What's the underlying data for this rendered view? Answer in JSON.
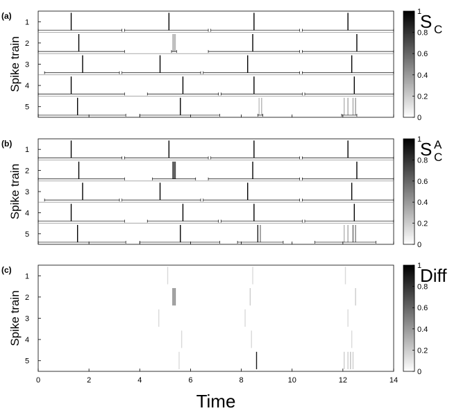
{
  "chart_data": {
    "type": "spike-raster",
    "x_axis": {
      "label": "Time",
      "range": [
        0,
        14
      ],
      "ticks": [
        0,
        2,
        4,
        6,
        8,
        10,
        12,
        14
      ]
    },
    "y_axis": {
      "label": "Spike train",
      "ticks": [
        1,
        2,
        3,
        4,
        5
      ]
    },
    "colorbar": {
      "range": [
        0,
        1
      ],
      "ticks": [
        0,
        0.2,
        0.4,
        0.6,
        0.8,
        1
      ],
      "tick_labels": [
        "0",
        "0.2",
        "0.4",
        "0.6",
        "0.8",
        "1"
      ]
    },
    "panels": [
      {
        "label": "(a)",
        "colorbar_title": "S",
        "colorbar_sub": "C",
        "colorbar_sup": "",
        "spikes": [
          [
            {
              "t": 1.3,
              "v": 1
            },
            {
              "t": 5.15,
              "v": 1
            },
            {
              "t": 8.5,
              "v": 1
            },
            {
              "t": 12.2,
              "v": 1
            }
          ],
          [
            {
              "t": 1.6,
              "v": 1
            },
            {
              "t": 5.3,
              "v": 0.3
            },
            {
              "t": 5.35,
              "v": 0.35
            },
            {
              "t": 5.4,
              "v": 0.3
            },
            {
              "t": 8.45,
              "v": 1
            },
            {
              "t": 12.55,
              "v": 1
            }
          ],
          [
            {
              "t": 1.75,
              "v": 1
            },
            {
              "t": 4.8,
              "v": 1
            },
            {
              "t": 8.25,
              "v": 1
            },
            {
              "t": 12.35,
              "v": 1
            }
          ],
          [
            {
              "t": 1.3,
              "v": 1
            },
            {
              "t": 5.7,
              "v": 1
            },
            {
              "t": 8.5,
              "v": 1
            },
            {
              "t": 12.45,
              "v": 1
            }
          ],
          [
            {
              "t": 1.55,
              "v": 1
            },
            {
              "t": 5.6,
              "v": 1
            },
            {
              "t": 8.7,
              "v": 0.25
            },
            {
              "t": 8.8,
              "v": 0.3
            },
            {
              "t": 12.05,
              "v": 0.3
            },
            {
              "t": 12.2,
              "v": 0.35
            },
            {
              "t": 12.4,
              "v": 0.35
            },
            {
              "t": 12.5,
              "v": 0.4
            }
          ]
        ],
        "bounds": [
          [
            {
              "a": 0,
              "b": 3.3
            },
            {
              "a": 3.4,
              "b": 6.7
            },
            {
              "a": 6.8,
              "b": 10.3
            },
            {
              "a": 10.4,
              "b": 14
            }
          ],
          [
            {
              "a": 0,
              "b": 3.4
            },
            {
              "a": 5.25,
              "b": 5.45
            },
            {
              "a": 6.7,
              "b": 10.3
            },
            {
              "a": 10.4,
              "b": 14
            }
          ],
          [
            {
              "a": 0.25,
              "b": 3.2
            },
            {
              "a": 3.3,
              "b": 6.4
            },
            {
              "a": 6.5,
              "b": 10.3
            },
            {
              "a": 10.4,
              "b": 14
            }
          ],
          [
            {
              "a": 0,
              "b": 3.4
            },
            {
              "a": 4.3,
              "b": 7.1
            },
            {
              "a": 7.2,
              "b": 10.4
            },
            {
              "a": 10.5,
              "b": 14
            }
          ],
          [
            {
              "a": 0,
              "b": 3.45
            },
            {
              "a": 4.0,
              "b": 7.15
            },
            {
              "a": 8.65,
              "b": 8.85
            },
            {
              "a": 11.95,
              "b": 12.55
            }
          ]
        ]
      },
      {
        "label": "(b)",
        "colorbar_title": "S",
        "colorbar_sub": "C",
        "colorbar_sup": "A",
        "spikes": [
          [
            {
              "t": 1.3,
              "v": 1
            },
            {
              "t": 5.15,
              "v": 1
            },
            {
              "t": 8.5,
              "v": 1
            },
            {
              "t": 12.2,
              "v": 1
            }
          ],
          [
            {
              "t": 1.6,
              "v": 1
            },
            {
              "t": 5.3,
              "v": 0.75
            },
            {
              "t": 5.35,
              "v": 0.85
            },
            {
              "t": 5.4,
              "v": 0.75
            },
            {
              "t": 8.45,
              "v": 1
            },
            {
              "t": 12.55,
              "v": 1
            }
          ],
          [
            {
              "t": 1.75,
              "v": 1
            },
            {
              "t": 4.8,
              "v": 1
            },
            {
              "t": 8.25,
              "v": 1
            },
            {
              "t": 12.35,
              "v": 1
            }
          ],
          [
            {
              "t": 1.3,
              "v": 1
            },
            {
              "t": 5.7,
              "v": 1
            },
            {
              "t": 8.5,
              "v": 1
            },
            {
              "t": 12.45,
              "v": 1
            }
          ],
          [
            {
              "t": 1.55,
              "v": 1
            },
            {
              "t": 5.6,
              "v": 1
            },
            {
              "t": 8.65,
              "v": 0.9
            },
            {
              "t": 8.75,
              "v": 0.5
            },
            {
              "t": 12.05,
              "v": 0.3
            },
            {
              "t": 12.2,
              "v": 0.35
            },
            {
              "t": 12.4,
              "v": 0.6
            },
            {
              "t": 12.5,
              "v": 0.5
            }
          ]
        ],
        "bounds": [
          [
            {
              "a": 0,
              "b": 3.3
            },
            {
              "a": 3.4,
              "b": 6.7
            },
            {
              "a": 6.8,
              "b": 10.3
            },
            {
              "a": 10.4,
              "b": 14
            }
          ],
          [
            {
              "a": 0,
              "b": 3.4
            },
            {
              "a": 4.5,
              "b": 6.2
            },
            {
              "a": 6.7,
              "b": 10.3
            },
            {
              "a": 10.4,
              "b": 14
            }
          ],
          [
            {
              "a": 0.25,
              "b": 3.2
            },
            {
              "a": 3.3,
              "b": 6.4
            },
            {
              "a": 6.5,
              "b": 10.3
            },
            {
              "a": 10.4,
              "b": 14
            }
          ],
          [
            {
              "a": 0,
              "b": 3.4
            },
            {
              "a": 4.3,
              "b": 7.1
            },
            {
              "a": 7.2,
              "b": 10.4
            },
            {
              "a": 10.5,
              "b": 14
            }
          ],
          [
            {
              "a": 0,
              "b": 3.45
            },
            {
              "a": 4.0,
              "b": 7.15
            },
            {
              "a": 7.85,
              "b": 9.65
            },
            {
              "a": 10.9,
              "b": 13.3
            }
          ]
        ]
      },
      {
        "label": "(c)",
        "colorbar_title": "Diff",
        "colorbar_sub": "",
        "colorbar_sup": "",
        "spikes": [
          [
            {
              "t": 5.1,
              "v": 0.15
            },
            {
              "t": 8.45,
              "v": 0.15
            },
            {
              "t": 12.1,
              "v": 0.15
            }
          ],
          [
            {
              "t": 5.3,
              "v": 0.45
            },
            {
              "t": 5.35,
              "v": 0.5
            },
            {
              "t": 5.4,
              "v": 0.45
            },
            {
              "t": 8.35,
              "v": 0.2
            },
            {
              "t": 12.5,
              "v": 0.2
            }
          ],
          [
            {
              "t": 4.75,
              "v": 0.15
            },
            {
              "t": 8.15,
              "v": 0.15
            },
            {
              "t": 12.2,
              "v": 0.15
            }
          ],
          [
            {
              "t": 5.65,
              "v": 0.15
            },
            {
              "t": 8.4,
              "v": 0.15
            },
            {
              "t": 12.35,
              "v": 0.15
            }
          ],
          [
            {
              "t": 5.55,
              "v": 0.15
            },
            {
              "t": 8.6,
              "v": 0.9
            },
            {
              "t": 12.05,
              "v": 0.2
            },
            {
              "t": 12.2,
              "v": 0.2
            },
            {
              "t": 12.3,
              "v": 0.25
            },
            {
              "t": 12.4,
              "v": 0.2
            }
          ]
        ],
        "bounds": [
          [],
          [],
          [],
          [],
          []
        ]
      }
    ]
  }
}
